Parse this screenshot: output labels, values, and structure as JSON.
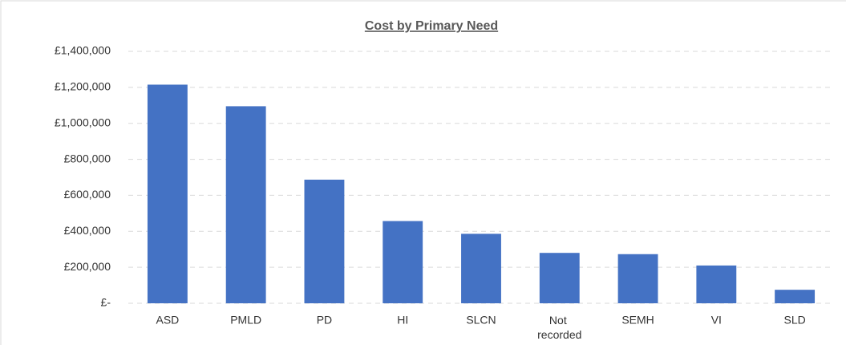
{
  "chart_data": {
    "type": "bar",
    "title": "Cost by Primary Need",
    "categories": [
      "ASD",
      "PMLD",
      "PD",
      "HI",
      "SLCN",
      "Not recorded",
      "SEMH",
      "VI",
      "SLD"
    ],
    "values": [
      1215000,
      1095000,
      687000,
      457000,
      386000,
      280000,
      273000,
      210000,
      75000
    ],
    "color": "#4472c4",
    "ylim": [
      0,
      1400000
    ],
    "yticks": [
      {
        "value": 0,
        "label": "£-"
      },
      {
        "value": 200000,
        "label": "£200,000"
      },
      {
        "value": 400000,
        "label": "£400,000"
      },
      {
        "value": 600000,
        "label": "£600,000"
      },
      {
        "value": 800000,
        "label": "£800,000"
      },
      {
        "value": 1000000,
        "label": "£1,000,000"
      },
      {
        "value": 1200000,
        "label": "£1,200,000"
      },
      {
        "value": 1400000,
        "label": "£1,400,000"
      }
    ],
    "grid": true
  }
}
